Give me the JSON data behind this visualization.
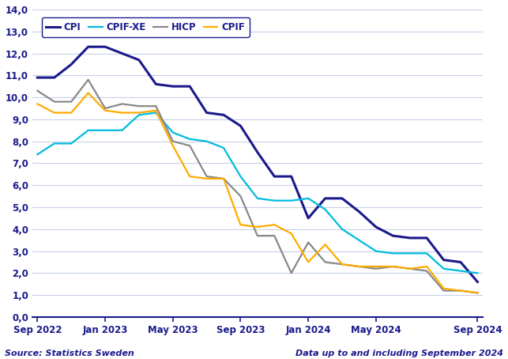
{
  "source_text": "Source: Statistics Sweden",
  "data_note": "Data up to and including September 2024",
  "ylim": [
    0.0,
    14.0
  ],
  "yticks": [
    0.0,
    1.0,
    2.0,
    3.0,
    4.0,
    5.0,
    6.0,
    7.0,
    8.0,
    9.0,
    10.0,
    11.0,
    12.0,
    13.0,
    14.0
  ],
  "ytick_labels": [
    "0,0",
    "1,0",
    "2,0",
    "3,0",
    "4,0",
    "5,0",
    "6,0",
    "7,0",
    "8,0",
    "9,0",
    "10,0",
    "11,0",
    "12,0",
    "13,0",
    "14,0"
  ],
  "xtick_labels": [
    "Sep 2022",
    "Jan 2023",
    "May 2023",
    "Sep 2023",
    "Jan 2024",
    "May 2024",
    "Sep 2024"
  ],
  "xtick_positions": [
    0,
    4,
    8,
    12,
    16,
    20,
    26
  ],
  "series": {
    "CPI": {
      "color": "#1a1a8c",
      "linewidth": 2.2,
      "values": [
        10.9,
        10.9,
        11.5,
        12.3,
        12.3,
        12.0,
        11.7,
        10.6,
        10.5,
        10.5,
        9.3,
        9.2,
        8.7,
        7.5,
        6.4,
        6.4,
        4.5,
        5.4,
        5.4,
        4.8,
        4.1,
        3.7,
        3.6,
        3.6,
        2.6,
        2.5,
        1.6
      ]
    },
    "CPIF-XE": {
      "color": "#00bbdd",
      "linewidth": 1.6,
      "values": [
        7.4,
        7.9,
        7.9,
        8.5,
        8.5,
        8.5,
        9.2,
        9.3,
        8.4,
        8.1,
        8.0,
        7.7,
        6.4,
        5.4,
        5.3,
        5.3,
        5.4,
        4.9,
        4.0,
        3.5,
        3.0,
        2.9,
        2.9,
        2.9,
        2.2,
        2.1,
        2.0
      ]
    },
    "HICP": {
      "color": "#888888",
      "linewidth": 1.6,
      "values": [
        10.3,
        9.8,
        9.8,
        10.8,
        9.5,
        9.7,
        9.6,
        9.6,
        8.0,
        7.8,
        6.4,
        6.3,
        5.5,
        3.7,
        3.7,
        2.0,
        3.4,
        2.5,
        2.4,
        2.3,
        2.2,
        2.3,
        2.2,
        2.1,
        1.2,
        1.2,
        1.1
      ]
    },
    "CPIF": {
      "color": "#ffaa00",
      "linewidth": 1.6,
      "values": [
        9.7,
        9.3,
        9.3,
        10.2,
        9.4,
        9.3,
        9.3,
        9.4,
        7.8,
        6.4,
        6.3,
        6.3,
        4.2,
        4.1,
        4.2,
        3.8,
        2.5,
        3.3,
        2.4,
        2.3,
        2.3,
        2.3,
        2.2,
        2.3,
        1.3,
        1.2,
        1.1
      ]
    }
  },
  "n_points": 27,
  "background_color": "#ffffff",
  "grid_color": "#c8d0e8",
  "text_color": "#1a1a8c",
  "axis_color": "#1a1a8c",
  "legend_labels": [
    "CPI",
    "CPIF-XE",
    "HICP",
    "CPIF"
  ],
  "legend_colors": [
    "#1a1a8c",
    "#00bbdd",
    "#888888",
    "#ffaa00"
  ],
  "legend_linewidths": [
    2.2,
    1.6,
    1.6,
    1.6
  ]
}
